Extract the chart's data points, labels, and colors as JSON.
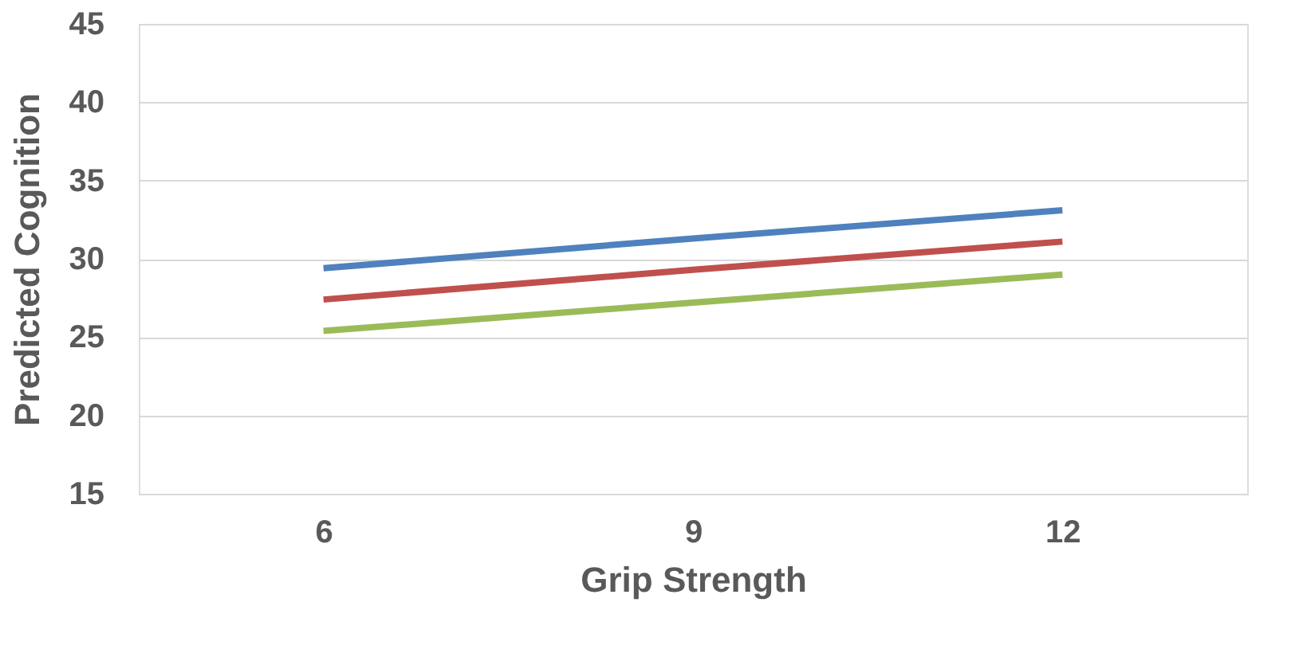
{
  "chart_data": {
    "type": "line",
    "xlabel": "Grip Strength",
    "ylabel": "Predicted Cognition",
    "categories": [
      "6",
      "9",
      "12"
    ],
    "series": [
      {
        "color": "#4f81bd",
        "values": [
          29.4,
          31.3,
          33.1
        ]
      },
      {
        "color": "#c0504d",
        "values": [
          27.4,
          29.3,
          31.1
        ]
      },
      {
        "color": "#9bbb59",
        "values": [
          25.4,
          27.2,
          29.0
        ]
      }
    ],
    "ylim": [
      15,
      45
    ],
    "yticks": [
      15,
      20,
      25,
      30,
      35,
      40,
      45
    ],
    "grid": "y",
    "legend": false,
    "marker": "none",
    "line_style": "solid"
  }
}
